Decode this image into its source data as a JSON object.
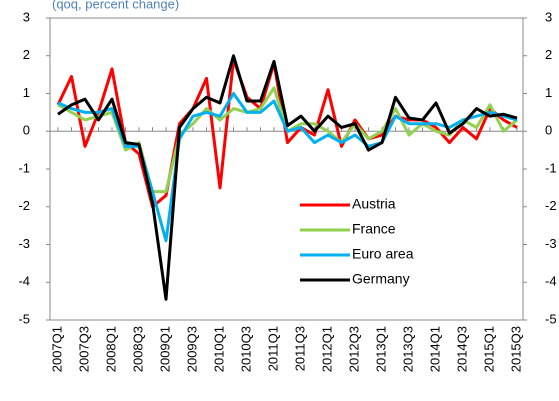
{
  "chart_data": {
    "type": "line",
    "subtitle": "(qoq, percent change)",
    "categories": [
      "2007Q1",
      null,
      "2007Q3",
      null,
      "2008Q1",
      null,
      "2008Q3",
      null,
      "2009Q1",
      null,
      "2009Q3",
      null,
      "2010Q1",
      null,
      "2010Q3",
      null,
      "2011Q1",
      null,
      "2011Q3",
      null,
      "2012Q1",
      null,
      "2012Q3",
      null,
      "2013Q1",
      null,
      "2013Q3",
      null,
      "2014Q1",
      null,
      "2014Q3",
      null,
      "2015Q1",
      null,
      "2015Q3"
    ],
    "series": [
      {
        "name": "Austria",
        "color": "#ff0000",
        "values": [
          0.7,
          1.45,
          -0.4,
          0.5,
          1.65,
          -0.3,
          -0.6,
          -2.0,
          -1.7,
          0.2,
          0.6,
          1.4,
          -1.5,
          1.9,
          0.9,
          0.6,
          1.8,
          -0.3,
          0.1,
          -0.1,
          1.1,
          -0.4,
          0.3,
          -0.2,
          -0.1,
          0.4,
          0.3,
          0.3,
          0.1,
          -0.3,
          0.1,
          -0.2,
          0.6,
          0.3,
          0.1
        ]
      },
      {
        "name": "France",
        "color": "#92d050",
        "values": [
          0.7,
          0.5,
          0.3,
          0.4,
          0.5,
          -0.5,
          -0.3,
          -1.6,
          -1.6,
          -0.1,
          0.2,
          0.6,
          0.3,
          0.6,
          0.5,
          0.6,
          1.15,
          0.0,
          0.2,
          0.2,
          0.0,
          -0.3,
          0.2,
          -0.2,
          0.0,
          0.6,
          -0.1,
          0.2,
          0.0,
          -0.1,
          0.3,
          0.1,
          0.7,
          0.0,
          0.3
        ]
      },
      {
        "name": "Euro area",
        "color": "#00b0f0",
        "values": [
          0.75,
          0.6,
          0.5,
          0.5,
          0.6,
          -0.4,
          -0.4,
          -1.6,
          -2.9,
          -0.2,
          0.4,
          0.5,
          0.4,
          1.0,
          0.5,
          0.5,
          0.8,
          0.0,
          0.1,
          -0.3,
          -0.1,
          -0.3,
          -0.1,
          -0.4,
          -0.3,
          0.4,
          0.2,
          0.2,
          0.2,
          0.1,
          0.3,
          0.4,
          0.5,
          0.4,
          0.3
        ]
      },
      {
        "name": "Germany",
        "color": "#000000",
        "values": [
          0.45,
          0.7,
          0.85,
          0.3,
          0.85,
          -0.3,
          -0.35,
          -1.9,
          -4.45,
          0.1,
          0.6,
          0.9,
          0.75,
          2.0,
          0.8,
          0.8,
          1.85,
          0.15,
          0.4,
          0.0,
          0.4,
          0.1,
          0.2,
          -0.5,
          -0.3,
          0.9,
          0.35,
          0.3,
          0.75,
          -0.05,
          0.2,
          0.6,
          0.4,
          0.45,
          0.35
        ]
      }
    ],
    "ylim": [
      -5,
      3
    ],
    "yticks": [
      -5,
      -4,
      -3,
      -2,
      -1,
      0,
      1,
      2,
      3
    ],
    "y2lim": [
      -5,
      3
    ],
    "y2ticks": [
      -5,
      -4,
      -3,
      -2,
      -1,
      0,
      1,
      2,
      3
    ],
    "grid": false,
    "legend": "lower right"
  }
}
